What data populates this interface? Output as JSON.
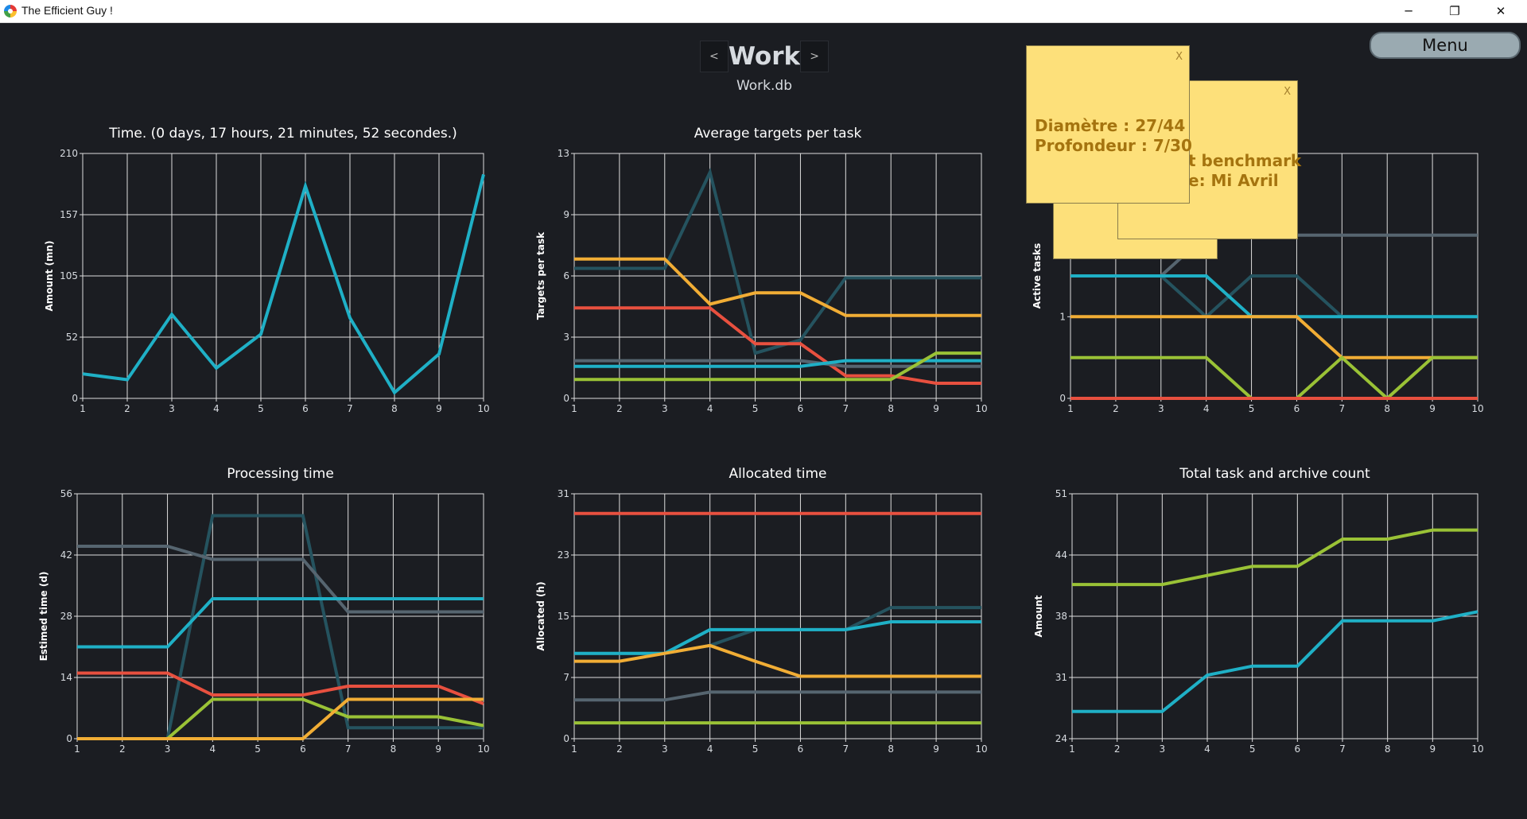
{
  "window": {
    "title": "The Efficient Guy !",
    "minimize_glyph": "─",
    "maximize_glyph": "❐",
    "close_glyph": "✕"
  },
  "header": {
    "prev_label": "<",
    "next_label": ">",
    "title": "Work",
    "db": "Work.db"
  },
  "menu": {
    "label": "Menu"
  },
  "notes": [
    {
      "lines": [
        "",
        "",
        ""
      ],
      "close": "X"
    },
    {
      "lines": [
        "t benchmark",
        "e: Mi Avril"
      ],
      "close": "X"
    },
    {
      "lines": [
        "Diamètre : 27/44",
        "Profondeur : 7/30"
      ],
      "close": "X"
    }
  ],
  "colors": {
    "background": "#1b1d22",
    "grid": "#dddddd",
    "cyan": "#1fb0c6",
    "dark_teal": "#25535f",
    "gray": "#566570",
    "red": "#e8503f",
    "orange": "#f1ad35",
    "lime": "#9ac236",
    "note": "#fde07a"
  },
  "chart_data": [
    {
      "type": "line",
      "title": "Time. (0 days, 17 hours, 21 minutes, 52 secondes.)",
      "xlabel": "",
      "ylabel": "Amount (mn)",
      "x": [
        1,
        2,
        3,
        4,
        5,
        6,
        7,
        8,
        9,
        10
      ],
      "ylim": [
        0,
        210
      ],
      "yticks": [
        "0",
        "52",
        "105",
        "157",
        "210"
      ],
      "series": [
        {
          "color": "#1fb0c6",
          "values": [
            21,
            16,
            72,
            26,
            55,
            182,
            69,
            5,
            38,
            192
          ]
        }
      ]
    },
    {
      "type": "line",
      "title": "Average targets per task",
      "xlabel": "",
      "ylabel": "Targets per task",
      "x": [
        1,
        2,
        3,
        4,
        5,
        6,
        7,
        8,
        9,
        10
      ],
      "ylim": [
        0,
        13
      ],
      "yticks": [
        "0",
        "3",
        "6",
        "9",
        "13"
      ],
      "series": [
        {
          "color": "#25535f",
          "values": [
            6.9,
            6.9,
            6.9,
            12.0,
            2.4,
            3.1,
            6.4,
            6.4,
            6.4,
            6.4
          ]
        },
        {
          "color": "#f1ad35",
          "values": [
            7.4,
            7.4,
            7.4,
            5.0,
            5.6,
            5.6,
            4.4,
            4.4,
            4.4,
            4.4
          ]
        },
        {
          "color": "#e8503f",
          "values": [
            4.8,
            4.8,
            4.8,
            4.8,
            2.9,
            2.9,
            1.2,
            1.2,
            0.8,
            0.8
          ]
        },
        {
          "color": "#566570",
          "values": [
            2.0,
            2.0,
            2.0,
            2.0,
            2.0,
            2.0,
            1.7,
            1.7,
            1.7,
            1.7
          ]
        },
        {
          "color": "#1fb0c6",
          "values": [
            1.7,
            1.7,
            1.7,
            1.7,
            1.7,
            1.7,
            2.0,
            2.0,
            2.0,
            2.0
          ]
        },
        {
          "color": "#9ac236",
          "values": [
            1.0,
            1.0,
            1.0,
            1.0,
            1.0,
            1.0,
            1.0,
            1.0,
            2.4,
            2.4
          ]
        }
      ]
    },
    {
      "type": "line",
      "title": "",
      "xlabel": "",
      "ylabel": "Active tasks",
      "x": [
        1,
        2,
        3,
        4,
        5,
        6,
        7,
        8,
        9,
        10
      ],
      "ylim": [
        0,
        6
      ],
      "yticks": [
        "0",
        "1",
        "3",
        ""
      ],
      "series": [
        {
          "color": "#566570",
          "values": [
            3.0,
            3.0,
            3.0,
            4.0,
            4.0,
            4.0,
            4.0,
            4.0,
            4.0,
            4.0
          ]
        },
        {
          "color": "#25535f",
          "values": [
            3.0,
            3.0,
            3.0,
            2.0,
            3.0,
            3.0,
            2.0,
            2.0,
            2.0,
            2.0
          ]
        },
        {
          "color": "#1fb0c6",
          "values": [
            3.0,
            3.0,
            3.0,
            3.0,
            2.0,
            2.0,
            2.0,
            2.0,
            2.0,
            2.0
          ]
        },
        {
          "color": "#f1ad35",
          "values": [
            2.0,
            2.0,
            2.0,
            2.0,
            2.0,
            2.0,
            1.0,
            1.0,
            1.0,
            1.0
          ]
        },
        {
          "color": "#9ac236",
          "values": [
            1.0,
            1.0,
            1.0,
            1.0,
            0,
            0,
            1.0,
            0,
            1.0,
            1.0
          ]
        },
        {
          "color": "#e8503f",
          "values": [
            0,
            0,
            0,
            0,
            0,
            0,
            0,
            0,
            0,
            0
          ]
        }
      ]
    },
    {
      "type": "line",
      "title": "Processing time",
      "xlabel": "",
      "ylabel": "Estimed time (d)",
      "x": [
        1,
        2,
        3,
        4,
        5,
        6,
        7,
        8,
        9,
        10
      ],
      "ylim": [
        0,
        56
      ],
      "yticks": [
        "0",
        "14",
        "28",
        "42",
        "56"
      ],
      "series": [
        {
          "color": "#25535f",
          "values": [
            0,
            0,
            0,
            51,
            51,
            51,
            2.5,
            2.5,
            2.5,
            2.5
          ]
        },
        {
          "color": "#566570",
          "values": [
            44,
            44,
            44,
            41,
            41,
            41,
            29,
            29,
            29,
            29
          ]
        },
        {
          "color": "#1fb0c6",
          "values": [
            21,
            21,
            21,
            32,
            32,
            32,
            32,
            32,
            32,
            32
          ]
        },
        {
          "color": "#e8503f",
          "values": [
            15,
            15,
            15,
            10,
            10,
            10,
            12,
            12,
            12,
            8
          ]
        },
        {
          "color": "#9ac236",
          "values": [
            0,
            0,
            0,
            9,
            9,
            9,
            5,
            5,
            5,
            3
          ]
        },
        {
          "color": "#f1ad35",
          "values": [
            0,
            0,
            0,
            0,
            0,
            0,
            9,
            9,
            9,
            9
          ]
        }
      ]
    },
    {
      "type": "line",
      "title": "Allocated time",
      "xlabel": "",
      "ylabel": "Allocated (h)",
      "x": [
        1,
        2,
        3,
        4,
        5,
        6,
        7,
        8,
        9,
        10
      ],
      "ylim": [
        0,
        31
      ],
      "yticks": [
        "0",
        "7",
        "15",
        "23",
        "31"
      ],
      "series": [
        {
          "color": "#e8503f",
          "values": [
            28.5,
            28.5,
            28.5,
            28.5,
            28.5,
            28.5,
            28.5,
            28.5,
            28.5,
            28.5
          ]
        },
        {
          "color": "#25535f",
          "values": [
            10.8,
            10.8,
            10.8,
            11.8,
            13.8,
            13.8,
            13.8,
            16.6,
            16.6,
            16.6
          ]
        },
        {
          "color": "#1fb0c6",
          "values": [
            10.8,
            10.8,
            10.8,
            13.8,
            13.8,
            13.8,
            13.8,
            14.8,
            14.8,
            14.8
          ]
        },
        {
          "color": "#f1ad35",
          "values": [
            9.8,
            9.8,
            10.8,
            11.8,
            9.8,
            7.9,
            7.9,
            7.9,
            7.9,
            7.9
          ]
        },
        {
          "color": "#566570",
          "values": [
            4.9,
            4.9,
            4.9,
            5.9,
            5.9,
            5.9,
            5.9,
            5.9,
            5.9,
            5.9
          ]
        },
        {
          "color": "#9ac236",
          "values": [
            2.0,
            2.0,
            2.0,
            2.0,
            2.0,
            2.0,
            2.0,
            2.0,
            2.0,
            2.0
          ]
        }
      ]
    },
    {
      "type": "line",
      "title": "Total task and archive count",
      "xlabel": "",
      "ylabel": "Amount",
      "x": [
        1,
        2,
        3,
        4,
        5,
        6,
        7,
        8,
        9,
        10
      ],
      "ylim": [
        24,
        51
      ],
      "yticks": [
        "24",
        "31",
        "38",
        "44",
        "51"
      ],
      "series": [
        {
          "color": "#9ac236",
          "values": [
            41,
            41,
            41,
            42,
            43,
            43,
            46,
            46,
            47,
            47
          ]
        },
        {
          "color": "#1fb0c6",
          "values": [
            27,
            27,
            27,
            31,
            32,
            32,
            37,
            37,
            37,
            38
          ]
        }
      ]
    }
  ]
}
